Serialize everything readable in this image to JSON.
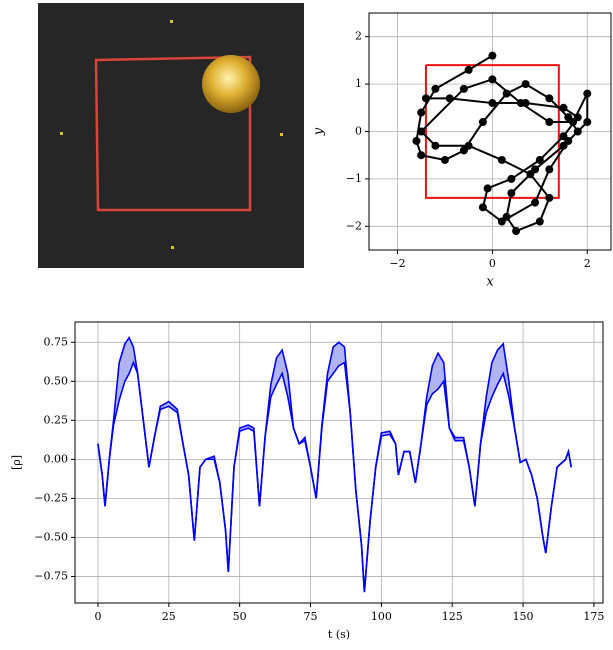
{
  "chart_data": [
    {
      "type": "scatter",
      "x_label": "x",
      "y_label": "y",
      "grid": true,
      "xlim": [
        -2.6,
        2.5
      ],
      "ylim": [
        -2.5,
        2.5
      ],
      "xticks": [
        {
          "value": -2,
          "label": "−2"
        },
        0,
        2
      ],
      "yticks": [
        {
          "value": -2,
          "label": "−2"
        },
        {
          "value": -1,
          "label": "−1"
        },
        0,
        1,
        2
      ],
      "series": [
        {
          "color": "#ee1111",
          "marker": false,
          "x": [
            -1.4,
            1.4,
            1.4,
            -1.4,
            -1.4
          ],
          "y": [
            1.4,
            1.4,
            -1.4,
            -1.4,
            1.4
          ]
        },
        {
          "color": "#000000",
          "marker": true,
          "x": [
            0.0,
            -0.5,
            -1.2,
            -1.5,
            -1.6,
            -1.5,
            -1.0,
            -0.6,
            -0.2,
            0.3,
            0.7,
            1.2,
            1.6,
            1.8,
            1.5,
            0.9,
            0.4,
            0.3,
            0.5,
            1.0,
            1.2,
            0.8,
            0.2,
            -0.5,
            -1.2,
            -1.5,
            -0.6,
            0.0,
            0.6,
            1.2,
            1.7,
            2.0,
            2.0,
            1.6,
            1.2,
            0.9,
            0.2,
            -0.2,
            -0.1,
            0.4,
            1.0,
            1.5,
            1.8,
            1.5,
            0.7,
            0.0,
            -0.9,
            -1.4
          ],
          "y": [
            1.6,
            1.3,
            0.9,
            0.4,
            -0.2,
            -0.5,
            -0.6,
            -0.4,
            0.2,
            0.8,
            1.0,
            0.7,
            0.3,
            0.0,
            -0.3,
            -0.8,
            -1.3,
            -1.8,
            -2.1,
            -1.9,
            -1.4,
            -0.9,
            -0.6,
            -0.3,
            -0.3,
            0.0,
            0.9,
            1.1,
            0.6,
            0.2,
            0.2,
            0.8,
            0.2,
            -0.2,
            -0.8,
            -1.5,
            -1.9,
            -1.6,
            -1.2,
            -1.0,
            -0.6,
            -0.1,
            0.3,
            0.5,
            0.6,
            0.6,
            0.7,
            0.7
          ]
        }
      ]
    },
    {
      "type": "line",
      "x_label": "t (s)",
      "y_label": "[ρ]",
      "grid": true,
      "fill_color": "#b0b4f2",
      "xlim": [
        -8.1,
        178.2
      ],
      "ylim": [
        -0.92,
        0.88
      ],
      "xticks": [
        0,
        25,
        50,
        75,
        100,
        125,
        150,
        175
      ],
      "yticks": [
        {
          "value": -0.75,
          "label": "−0.75"
        },
        {
          "value": -0.5,
          "label": "−0.50"
        },
        {
          "value": -0.25,
          "label": "−0.25"
        },
        {
          "value": 0,
          "label": "0.00"
        },
        0.25,
        {
          "value": 0.5,
          "label": "0.50"
        },
        0.75
      ],
      "x": [
        0,
        1.5,
        2.5,
        4,
        5.5,
        7.5,
        9.5,
        11,
        12.5,
        14,
        16,
        18,
        20,
        22,
        25,
        28,
        30,
        32,
        34,
        36,
        38,
        41,
        43,
        45,
        46,
        48,
        50,
        53,
        55,
        57,
        59,
        61,
        63,
        65,
        67,
        69,
        71,
        73,
        75,
        77,
        79,
        81,
        83,
        85,
        87,
        89,
        91,
        93,
        94,
        96,
        98,
        100,
        103,
        105,
        106,
        108,
        110,
        112,
        114,
        116,
        118,
        120,
        122,
        124,
        126,
        129,
        131,
        133,
        135,
        137,
        139,
        141,
        143,
        145,
        147,
        149,
        151,
        153,
        155,
        157,
        158,
        160,
        162,
        165,
        166,
        167
      ],
      "series": [
        {
          "color": "#0000ee",
          "values": [
            0.1,
            -0.1,
            -0.3,
            0.0,
            0.25,
            0.62,
            0.74,
            0.78,
            0.72,
            0.55,
            0.25,
            -0.05,
            0.15,
            0.34,
            0.37,
            0.32,
            0.1,
            -0.1,
            -0.52,
            -0.05,
            0.0,
            0.02,
            -0.15,
            -0.45,
            -0.72,
            -0.05,
            0.2,
            0.22,
            0.2,
            -0.3,
            0.15,
            0.48,
            0.65,
            0.7,
            0.55,
            0.2,
            0.1,
            0.14,
            -0.05,
            -0.25,
            0.22,
            0.55,
            0.72,
            0.75,
            0.72,
            0.3,
            -0.2,
            -0.55,
            -0.85,
            -0.4,
            -0.05,
            0.17,
            0.18,
            0.1,
            -0.1,
            0.05,
            0.05,
            -0.15,
            0.1,
            0.4,
            0.6,
            0.68,
            0.62,
            0.2,
            0.14,
            0.14,
            -0.05,
            -0.3,
            0.1,
            0.4,
            0.62,
            0.7,
            0.74,
            0.5,
            0.2,
            -0.02,
            0.0,
            -0.1,
            -0.25,
            -0.5,
            -0.6,
            -0.3,
            -0.05,
            0.0,
            0.05,
            -0.05
          ]
        },
        {
          "color": "#0000ee",
          "values": [
            0.1,
            -0.1,
            -0.3,
            0.0,
            0.22,
            0.38,
            0.5,
            0.55,
            0.62,
            0.55,
            0.25,
            -0.05,
            0.15,
            0.32,
            0.34,
            0.3,
            0.1,
            -0.1,
            -0.52,
            -0.05,
            0.0,
            0.0,
            -0.15,
            -0.45,
            -0.72,
            -0.05,
            0.18,
            0.2,
            0.18,
            -0.3,
            0.15,
            0.4,
            0.48,
            0.55,
            0.4,
            0.2,
            0.1,
            0.12,
            -0.05,
            -0.25,
            0.2,
            0.5,
            0.55,
            0.6,
            0.62,
            0.3,
            -0.2,
            -0.55,
            -0.85,
            -0.4,
            -0.05,
            0.15,
            0.16,
            0.1,
            -0.1,
            0.05,
            0.05,
            -0.15,
            0.1,
            0.35,
            0.42,
            0.45,
            0.5,
            0.2,
            0.12,
            0.12,
            -0.05,
            -0.3,
            0.1,
            0.3,
            0.4,
            0.48,
            0.55,
            0.4,
            0.2,
            -0.02,
            0.0,
            -0.1,
            -0.25,
            -0.5,
            -0.6,
            -0.3,
            -0.05,
            0.0,
            0.05,
            -0.05
          ]
        }
      ]
    }
  ]
}
